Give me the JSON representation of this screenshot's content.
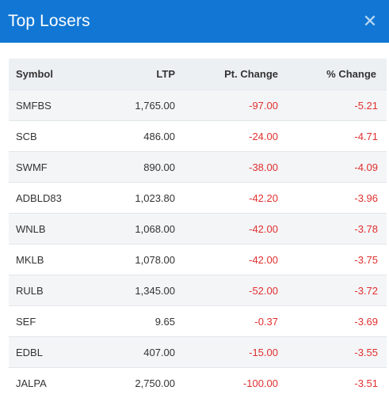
{
  "header": {
    "title": "Top Losers",
    "close_icon": "close-icon"
  },
  "table": {
    "columns": [
      "Symbol",
      "LTP",
      "Pt. Change",
      "% Change"
    ],
    "rows": [
      {
        "symbol": "SMFBS",
        "ltp": "1,765.00",
        "pt_change": "-97.00",
        "pct_change": "-5.21"
      },
      {
        "symbol": "SCB",
        "ltp": "486.00",
        "pt_change": "-24.00",
        "pct_change": "-4.71"
      },
      {
        "symbol": "SWMF",
        "ltp": "890.00",
        "pt_change": "-38.00",
        "pct_change": "-4.09"
      },
      {
        "symbol": "ADBLD83",
        "ltp": "1,023.80",
        "pt_change": "-42.20",
        "pct_change": "-3.96"
      },
      {
        "symbol": "WNLB",
        "ltp": "1,068.00",
        "pt_change": "-42.00",
        "pct_change": "-3.78"
      },
      {
        "symbol": "MKLB",
        "ltp": "1,078.00",
        "pt_change": "-42.00",
        "pct_change": "-3.75"
      },
      {
        "symbol": "RULB",
        "ltp": "1,345.00",
        "pt_change": "-52.00",
        "pct_change": "-3.72"
      },
      {
        "symbol": "SEF",
        "ltp": "9.65",
        "pt_change": "-0.37",
        "pct_change": "-3.69"
      },
      {
        "symbol": "EDBL",
        "ltp": "407.00",
        "pt_change": "-15.00",
        "pct_change": "-3.55"
      },
      {
        "symbol": "JALPA",
        "ltp": "2,750.00",
        "pt_change": "-100.00",
        "pct_change": "-3.51"
      }
    ]
  },
  "colors": {
    "header_bg": "#1277d4",
    "negative": "#e0302f"
  }
}
